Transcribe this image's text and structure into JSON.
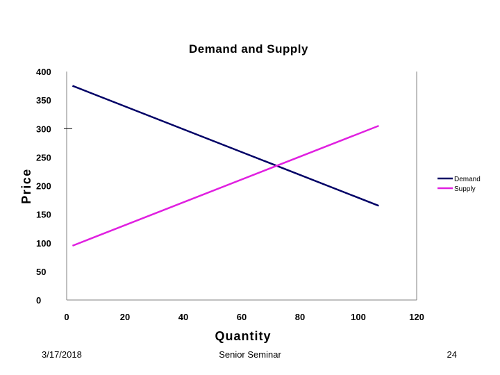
{
  "chart_data": {
    "type": "line",
    "title": "Demand and Supply",
    "xlabel": "Quantity",
    "ylabel": "Price",
    "xlim": [
      0,
      120
    ],
    "ylim": [
      0,
      400
    ],
    "x_ticks": [
      "0",
      "20",
      "40",
      "60",
      "80",
      "100",
      "120"
    ],
    "y_ticks": [
      "0",
      "50",
      "100",
      "150",
      "200",
      "250",
      "300",
      "350",
      "400"
    ],
    "grid": false,
    "legend_position": "right",
    "series": [
      {
        "name": "Demand",
        "color": "#000066",
        "x": [
          2,
          107
        ],
        "y": [
          375,
          165
        ]
      },
      {
        "name": "Supply",
        "color": "#e020e0",
        "x": [
          2,
          107
        ],
        "y": [
          95,
          305
        ]
      }
    ]
  },
  "footer": {
    "date": "3/17/2018",
    "center": "Senior Seminar",
    "page": "24"
  }
}
